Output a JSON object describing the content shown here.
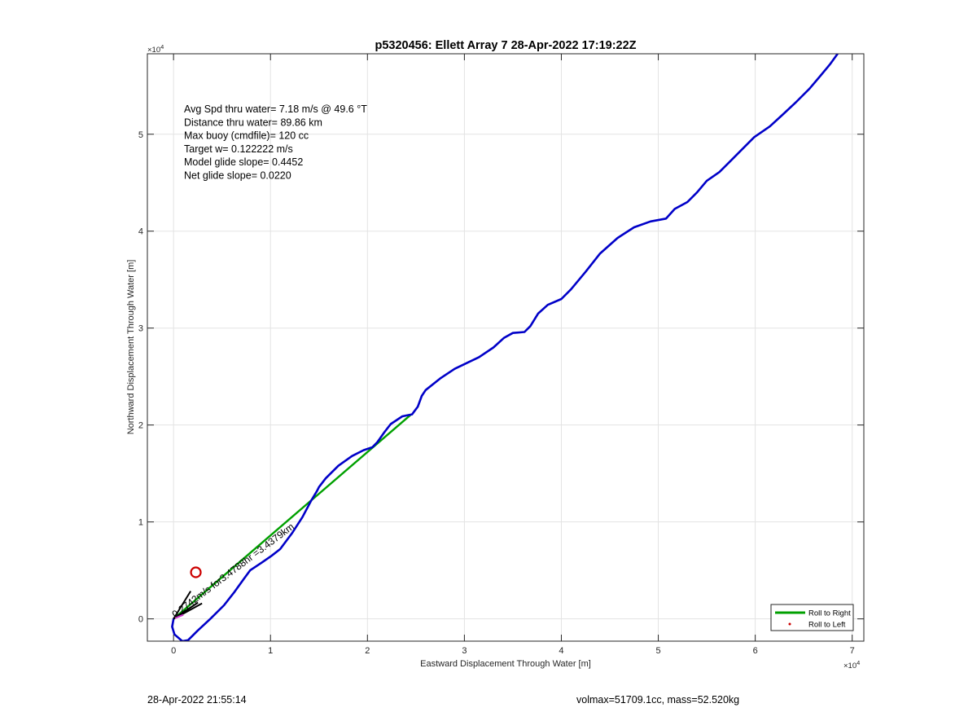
{
  "chart_data": {
    "type": "line",
    "title": "p5320456: Ellett Array 7 28-Apr-2022 17:19:22Z",
    "xlabel": "Eastward Displacement Through Water [m]",
    "ylabel": "Northward Displacement Through Water [m]",
    "x_exponent_label": "×10",
    "x_exponent_power": "4",
    "y_exponent_label": "×10",
    "y_exponent_power": "4",
    "xlim": [
      -2700,
      71200
    ],
    "ylim": [
      -2300,
      58300
    ],
    "xticks": [
      0,
      10000,
      20000,
      30000,
      40000,
      50000,
      60000,
      70000
    ],
    "xticklabels": [
      "0",
      "1",
      "2",
      "3",
      "4",
      "5",
      "6",
      "7"
    ],
    "yticks": [
      0,
      10000,
      20000,
      30000,
      40000,
      50000
    ],
    "yticklabels": [
      "0",
      "1",
      "2",
      "3",
      "4",
      "5"
    ],
    "grid": true,
    "annotation_lines": [
      "Avg Spd thru water=  7.18 m/s @  49.6 °T",
      "Distance thru water= 89.86 km",
      "Max buoy (cmdfile)= 120 cc",
      "Target w= 0.122222 m/s",
      "Model glide slope= 0.4452",
      "Net glide slope= 0.0220"
    ],
    "current_label": "0.2742m/s for3.4788hr =3.4379km",
    "target_marker": {
      "x": 2300,
      "y": 4800,
      "color": "#cc0000"
    },
    "legend": {
      "placement": "bottom-right",
      "entries": [
        {
          "label": "Roll to Right",
          "color": "#00a000",
          "style": "line"
        },
        {
          "label": "Roll to Left",
          "color": "#cc0000",
          "style": "dot"
        }
      ]
    },
    "series": [
      {
        "name": "",
        "color": "#0000c8",
        "points": [
          [
            0,
            0
          ],
          [
            -150,
            -800
          ],
          [
            100,
            -1600
          ],
          [
            900,
            -2300
          ],
          [
            1500,
            -2200
          ],
          [
            2500,
            -1200
          ],
          [
            3800,
            0
          ],
          [
            5200,
            1400
          ],
          [
            6300,
            2800
          ],
          [
            7300,
            4200
          ],
          [
            7900,
            5000
          ],
          [
            9100,
            5800
          ],
          [
            10100,
            6500
          ],
          [
            11000,
            7200
          ],
          [
            12200,
            8800
          ],
          [
            13300,
            10500
          ],
          [
            14200,
            12200
          ],
          [
            14800,
            13200
          ],
          [
            15000,
            13600
          ],
          [
            15700,
            14500
          ],
          [
            17000,
            15800
          ],
          [
            18400,
            16800
          ],
          [
            19600,
            17400
          ],
          [
            20500,
            17700
          ],
          [
            21000,
            18200
          ],
          [
            21700,
            19200
          ],
          [
            22400,
            20100
          ],
          [
            23600,
            20900
          ],
          [
            24600,
            21100
          ],
          [
            25200,
            21900
          ],
          [
            25600,
            23000
          ],
          [
            26000,
            23600
          ],
          [
            27500,
            24800
          ],
          [
            29000,
            25800
          ],
          [
            31500,
            27000
          ],
          [
            33000,
            28000
          ],
          [
            34100,
            29000
          ],
          [
            35000,
            29500
          ],
          [
            36200,
            29600
          ],
          [
            36800,
            30200
          ],
          [
            37600,
            31500
          ],
          [
            38600,
            32400
          ],
          [
            40000,
            33000
          ],
          [
            41000,
            34000
          ],
          [
            42500,
            35800
          ],
          [
            44000,
            37700
          ],
          [
            45800,
            39300
          ],
          [
            47500,
            40400
          ],
          [
            49200,
            41000
          ],
          [
            50800,
            41300
          ],
          [
            51700,
            42300
          ],
          [
            53000,
            43000
          ],
          [
            54000,
            44000
          ],
          [
            55000,
            45200
          ],
          [
            56300,
            46100
          ],
          [
            57500,
            47300
          ],
          [
            58700,
            48500
          ],
          [
            59900,
            49700
          ],
          [
            61500,
            50800
          ],
          [
            62800,
            52000
          ],
          [
            64200,
            53300
          ],
          [
            65600,
            54700
          ],
          [
            66700,
            56000
          ],
          [
            67700,
            57200
          ],
          [
            68500,
            58300
          ]
        ]
      },
      {
        "name": "",
        "color": "#00a000",
        "points": [
          [
            24400,
            21000
          ],
          [
            0,
            0
          ]
        ]
      }
    ]
  },
  "footer": {
    "left": "28-Apr-2022 21:55:14",
    "right": "volmax=51709.1cc, mass=52.520kg"
  }
}
